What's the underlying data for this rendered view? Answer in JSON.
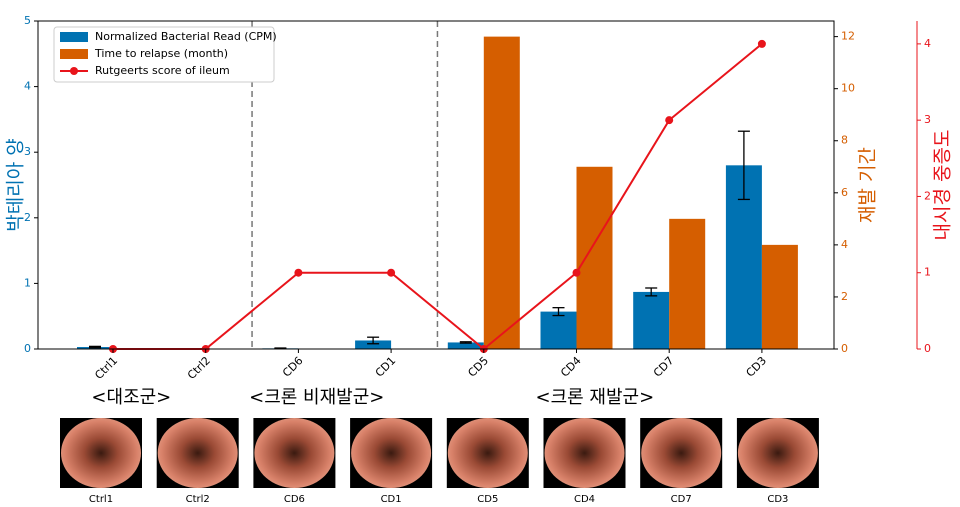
{
  "chart_data": {
    "type": "bar",
    "categories": [
      "Ctrl1",
      "Ctrl2",
      "CD6",
      "CD1",
      "CD5",
      "CD4",
      "CD7",
      "CD3"
    ],
    "series": [
      {
        "name": "Normalized Bacterial Read (CPM)",
        "color": "#0072B2",
        "axis": "y",
        "values": [
          0.03,
          0,
          0.01,
          0.13,
          0.1,
          0.57,
          0.87,
          2.8
        ],
        "errors": [
          0.01,
          0,
          0.005,
          0.05,
          0.01,
          0.06,
          0.06,
          0.52
        ]
      },
      {
        "name": "Time to relapse (month)",
        "color": "#D55E00",
        "axis": "y2",
        "values": [
          0,
          0,
          0,
          0,
          12,
          7,
          5,
          4
        ]
      },
      {
        "name": "Rutgeerts score of ileum",
        "color": "#e8141b",
        "axis": "y3",
        "type": "line",
        "values": [
          0,
          0,
          1,
          1,
          0,
          1,
          3,
          4
        ]
      }
    ],
    "ylabel": "박테리아 양",
    "ylim": [
      0,
      5
    ],
    "yticks": [
      0,
      1,
      2,
      3,
      4,
      5
    ],
    "y2label": "재발 기간",
    "y2lim": [
      0,
      12.6
    ],
    "y2ticks": [
      0,
      2,
      4,
      6,
      8,
      10,
      12
    ],
    "y3label": "내시경 중증도",
    "y3lim": [
      0,
      4.3
    ],
    "y3ticks": [
      0,
      1,
      2,
      3,
      4
    ],
    "group_dividers": [
      1.5,
      3.5
    ],
    "groups": [
      {
        "label": "<대조군>",
        "center": 0.5
      },
      {
        "label": "<크론 비재발군>",
        "center": 2.5
      },
      {
        "label": "<크론 재발군>",
        "center": 5.5
      }
    ],
    "legend": "upper left"
  },
  "images": [
    {
      "label": "Ctrl1"
    },
    {
      "label": "Ctrl2"
    },
    {
      "label": "CD6"
    },
    {
      "label": "CD1"
    },
    {
      "label": "CD5"
    },
    {
      "label": "CD4"
    },
    {
      "label": "CD7"
    },
    {
      "label": "CD3"
    }
  ]
}
